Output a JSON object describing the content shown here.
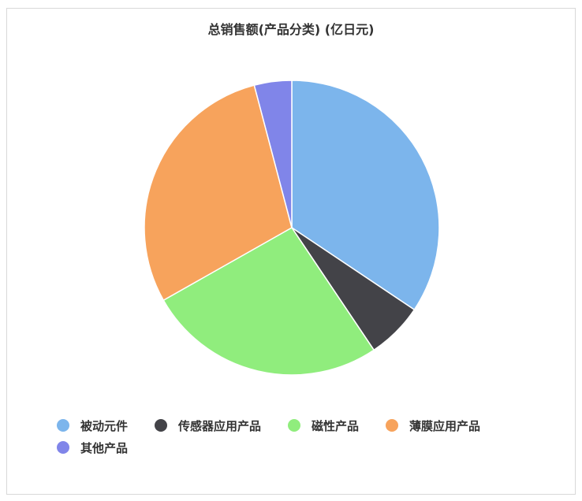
{
  "chart_data": {
    "type": "pie",
    "title": "总销售额(产品分类) (亿日元)",
    "unit": "%",
    "categories": [
      "被动元件",
      "传感器应用产品",
      "磁性产品",
      "薄膜应用产品",
      "其他产品"
    ],
    "values": [
      34.4,
      6.2,
      26.2,
      29.1,
      4.1
    ],
    "colors": [
      "#7cb5ec",
      "#434348",
      "#90ed7d",
      "#f7a35c",
      "#8085e9"
    ],
    "start_angle": "top, clockwise",
    "legend_position": "bottom"
  }
}
